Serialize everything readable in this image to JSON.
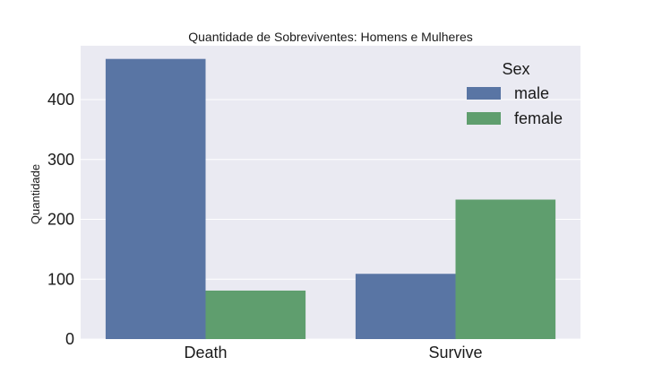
{
  "chart_data": {
    "type": "bar",
    "title": "Quantidade de Sobreviventes: Homens e Mulheres",
    "xlabel": "",
    "ylabel": "Quantidade",
    "categories": [
      "Death",
      "Survive"
    ],
    "series": [
      {
        "name": "male",
        "values": [
          468,
          109
        ],
        "color": "#5975a4"
      },
      {
        "name": "female",
        "values": [
          81,
          233
        ],
        "color": "#5f9e6e"
      }
    ],
    "ylim": [
      0,
      490
    ],
    "yticks": [
      0,
      100,
      200,
      300,
      400
    ],
    "grid": true,
    "legend": {
      "title": "Sex",
      "position": "top-right"
    },
    "background_color": "#eaeaf2"
  }
}
